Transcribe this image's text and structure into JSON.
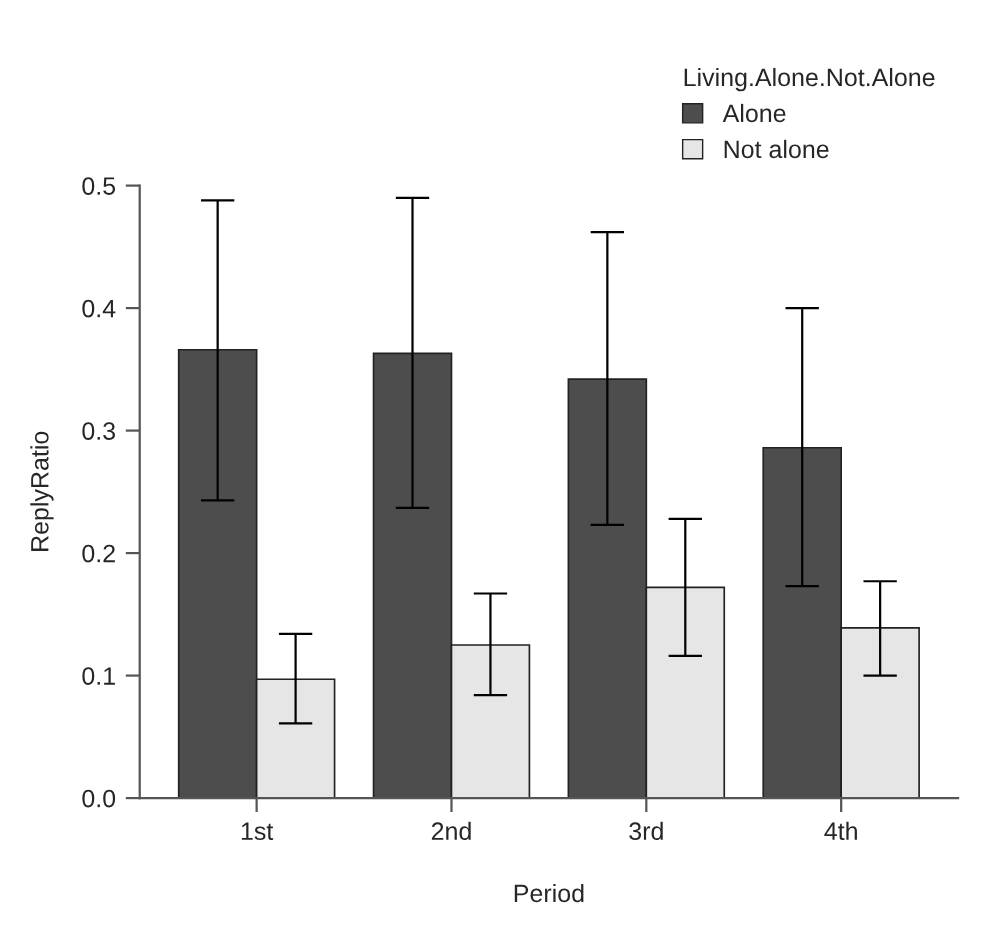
{
  "chart_data": {
    "type": "bar",
    "xlabel": "Period",
    "ylabel": "ReplyRatio",
    "legend_title": "Living.Alone.Not.Alone",
    "categories": [
      "1st",
      "2nd",
      "3rd",
      "4th"
    ],
    "series": [
      {
        "name": "Alone",
        "color": "#4d4d4d",
        "values": [
          0.366,
          0.363,
          0.342,
          0.286
        ],
        "errors": [
          [
            0.243,
            0.488
          ],
          [
            0.237,
            0.49
          ],
          [
            0.223,
            0.462
          ],
          [
            0.173,
            0.4
          ]
        ]
      },
      {
        "name": "Not alone",
        "color": "#e6e6e6",
        "values": [
          0.097,
          0.125,
          0.172,
          0.139
        ],
        "errors": [
          [
            0.061,
            0.134
          ],
          [
            0.084,
            0.167
          ],
          [
            0.116,
            0.228
          ],
          [
            0.1,
            0.177
          ]
        ]
      }
    ],
    "ylim": [
      0,
      0.5
    ],
    "yticks": [
      {
        "value": 0,
        "label": "0.0"
      },
      0.1,
      0.2,
      0.3,
      0.4,
      0.5
    ],
    "grid": false,
    "legend": "top right"
  }
}
